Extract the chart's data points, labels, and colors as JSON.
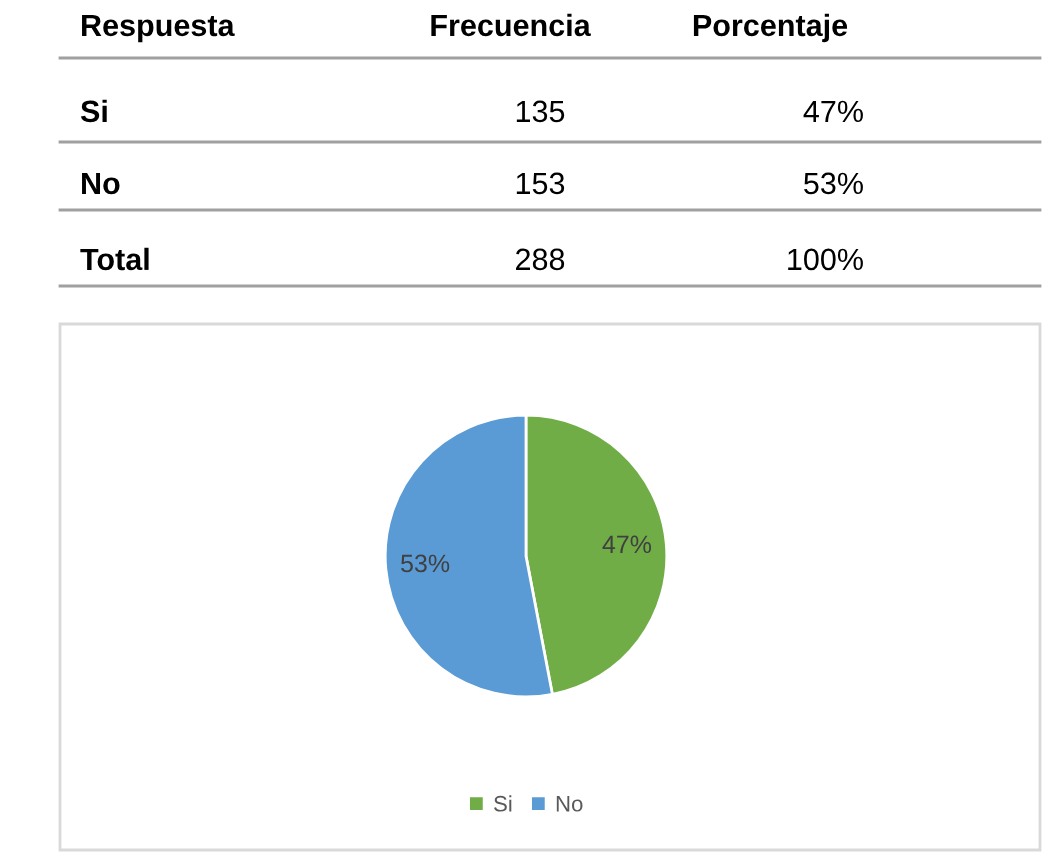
{
  "chart_data": [
    {
      "type": "other",
      "annotations": [
        "Respuesta",
        "Frecuencia",
        "Porcentaje",
        "Si",
        "135",
        "47%",
        "No",
        "153",
        "53%",
        "Total",
        "288",
        "100%"
      ]
    },
    {
      "type": "pie",
      "categories": [
        "Si",
        "No"
      ],
      "values": [
        47,
        53
      ],
      "colors": [
        "#70ad47",
        "#5b9bd5"
      ],
      "value_labels": [
        "47%",
        "53%"
      ],
      "legend": "bottom"
    }
  ]
}
